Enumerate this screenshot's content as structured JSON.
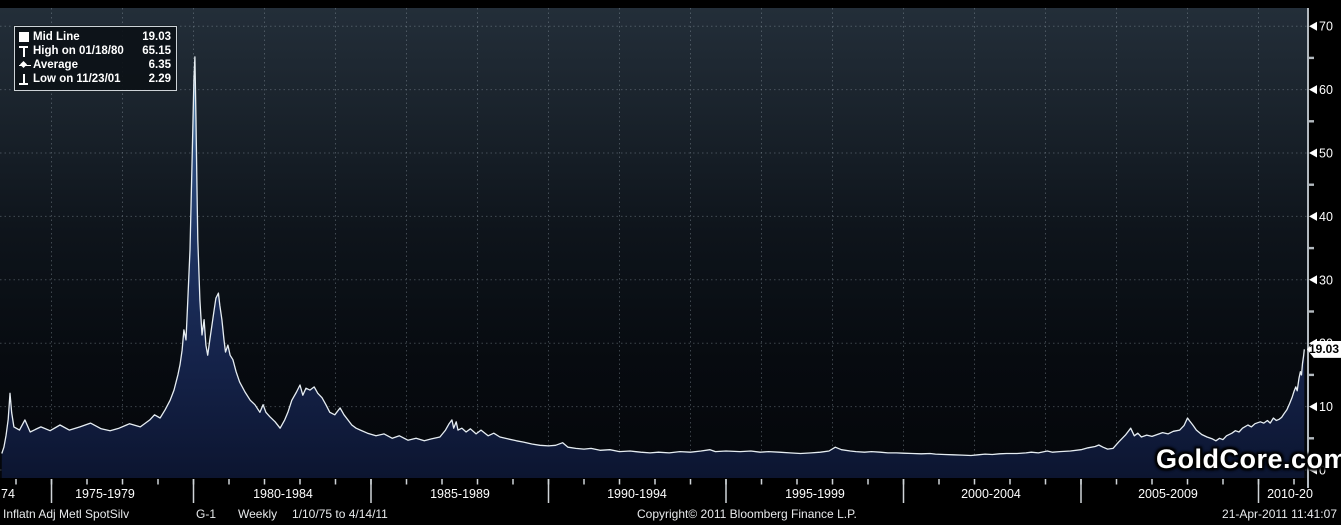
{
  "legend": {
    "rows": [
      {
        "icon": "mid-line-icon",
        "label": "Mid Line",
        "value": "19.03"
      },
      {
        "icon": "high-marker-icon",
        "label": "High on 01/18/80",
        "value": "65.15"
      },
      {
        "icon": "average-marker-icon",
        "label": "Average",
        "value": "6.35"
      },
      {
        "icon": "low-marker-icon",
        "label": "Low on 11/23/01",
        "value": "2.29"
      }
    ]
  },
  "y_axis": {
    "ticks": [
      70,
      60,
      50,
      40,
      30,
      20,
      10,
      0
    ],
    "minor_tick_interval": 5,
    "current_value_label": "19.03"
  },
  "x_axis": {
    "labels": [
      "74",
      "1975-1979",
      "1980-1984",
      "1985-1989",
      "1990-1994",
      "1995-1999",
      "2000-2004",
      "2005-2009",
      "2010-20"
    ]
  },
  "watermark": "GoldCore.com",
  "status_bar": {
    "security": "Inflatn Adj Metl SpotSilv",
    "page": "G-1",
    "frequency": "Weekly",
    "range": "1/10/75 to 4/14/11",
    "copyright": "Copyright© 2011 Bloomberg Finance L.P.",
    "timestamp": "21-Apr-2011 11:41:07"
  },
  "colors": {
    "background_top": "#232e39",
    "background_bottom": "#04060a",
    "area_top": "#7fa8c9",
    "area_bottom": "#0c1530",
    "line": "#e6edf2",
    "grid": "#95a2ac",
    "axis": "#b3bac0",
    "tag_background": "#ffffff"
  },
  "chart_data": {
    "type": "area",
    "series_name": "Inflatn Adj Metl SpotSilv",
    "frequency": "Weekly",
    "date_range": "1/10/75 to 4/14/11",
    "ylim": [
      0,
      70
    ],
    "y_tick_step": 10,
    "grid": "dotted",
    "legend_position": "top-left",
    "stats": {
      "mid_line": 19.03,
      "high": {
        "date": "01/18/80",
        "value": 65.15
      },
      "average": 6.35,
      "low": {
        "date": "11/23/01",
        "value": 2.29
      }
    },
    "x_grid_years": [
      1976,
      1978,
      1980,
      1982,
      1984,
      1986,
      1988,
      1990,
      1992,
      1994,
      1996,
      1998,
      2000,
      2002,
      2004,
      2006,
      2008,
      2010
    ],
    "x_section_tick_years": [
      1976,
      1980,
      1985,
      1990,
      1995,
      2000,
      2005,
      2010
    ],
    "x_minor_tick_years_range": [
      1975,
      2011
    ],
    "points": [
      [
        1974.6,
        2.6
      ],
      [
        1974.66,
        3.6
      ],
      [
        1974.72,
        5.5
      ],
      [
        1974.78,
        8.0
      ],
      [
        1974.83,
        12.1
      ],
      [
        1974.88,
        9.0
      ],
      [
        1974.94,
        6.8
      ],
      [
        1975.1,
        6.3
      ],
      [
        1975.25,
        7.9
      ],
      [
        1975.4,
        6.0
      ],
      [
        1975.55,
        6.4
      ],
      [
        1975.7,
        6.8
      ],
      [
        1975.96,
        6.2
      ],
      [
        1976.24,
        7.1
      ],
      [
        1976.5,
        6.3
      ],
      [
        1976.8,
        6.8
      ],
      [
        1977.1,
        7.4
      ],
      [
        1977.4,
        6.5
      ],
      [
        1977.65,
        6.2
      ],
      [
        1977.9,
        6.6
      ],
      [
        1978.2,
        7.3
      ],
      [
        1978.5,
        6.8
      ],
      [
        1978.77,
        7.9
      ],
      [
        1978.9,
        8.7
      ],
      [
        1979.06,
        8.2
      ],
      [
        1979.2,
        9.5
      ],
      [
        1979.34,
        11.0
      ],
      [
        1979.45,
        12.6
      ],
      [
        1979.56,
        15.0
      ],
      [
        1979.62,
        16.6
      ],
      [
        1979.68,
        18.9
      ],
      [
        1979.73,
        22.1
      ],
      [
        1979.79,
        20.5
      ],
      [
        1979.84,
        26.8
      ],
      [
        1979.9,
        34.7
      ],
      [
        1979.96,
        48.9
      ],
      [
        1980.01,
        61.5
      ],
      [
        1980.04,
        65.15
      ],
      [
        1980.07,
        55.2
      ],
      [
        1980.1,
        44.2
      ],
      [
        1980.12,
        36.3
      ],
      [
        1980.18,
        26.8
      ],
      [
        1980.24,
        21.3
      ],
      [
        1980.3,
        23.7
      ],
      [
        1980.35,
        19.7
      ],
      [
        1980.4,
        18.1
      ],
      [
        1980.46,
        20.5
      ],
      [
        1980.52,
        22.9
      ],
      [
        1980.58,
        25.2
      ],
      [
        1980.63,
        27.1
      ],
      [
        1980.7,
        27.9
      ],
      [
        1980.74,
        26.0
      ],
      [
        1980.8,
        23.7
      ],
      [
        1980.86,
        20.5
      ],
      [
        1980.9,
        18.6
      ],
      [
        1980.97,
        19.7
      ],
      [
        1981.03,
        18.1
      ],
      [
        1981.11,
        17.4
      ],
      [
        1981.2,
        15.5
      ],
      [
        1981.3,
        13.9
      ],
      [
        1981.45,
        12.3
      ],
      [
        1981.6,
        11.0
      ],
      [
        1981.73,
        10.3
      ],
      [
        1981.87,
        9.1
      ],
      [
        1981.96,
        10.3
      ],
      [
        1982.04,
        9.1
      ],
      [
        1982.15,
        8.4
      ],
      [
        1982.3,
        7.6
      ],
      [
        1982.44,
        6.6
      ],
      [
        1982.57,
        7.9
      ],
      [
        1982.66,
        9.1
      ],
      [
        1982.77,
        11.0
      ],
      [
        1982.9,
        12.3
      ],
      [
        1983.0,
        13.4
      ],
      [
        1983.08,
        11.8
      ],
      [
        1983.17,
        12.9
      ],
      [
        1983.28,
        12.6
      ],
      [
        1983.4,
        13.1
      ],
      [
        1983.5,
        12.1
      ],
      [
        1983.62,
        11.4
      ],
      [
        1983.73,
        10.3
      ],
      [
        1983.84,
        9.1
      ],
      [
        1983.98,
        8.7
      ],
      [
        1984.13,
        9.8
      ],
      [
        1984.24,
        8.7
      ],
      [
        1984.35,
        7.9
      ],
      [
        1984.46,
        7.1
      ],
      [
        1984.58,
        6.6
      ],
      [
        1984.7,
        6.3
      ],
      [
        1984.9,
        5.8
      ],
      [
        1985.14,
        5.4
      ],
      [
        1985.37,
        5.7
      ],
      [
        1985.6,
        5.0
      ],
      [
        1985.8,
        5.4
      ],
      [
        1986.04,
        4.7
      ],
      [
        1986.27,
        5.0
      ],
      [
        1986.5,
        4.6
      ],
      [
        1986.7,
        4.9
      ],
      [
        1986.94,
        5.2
      ],
      [
        1987.1,
        6.3
      ],
      [
        1987.2,
        7.3
      ],
      [
        1987.28,
        7.9
      ],
      [
        1987.33,
        6.6
      ],
      [
        1987.4,
        7.6
      ],
      [
        1987.45,
        6.3
      ],
      [
        1987.56,
        6.6
      ],
      [
        1987.68,
        6.0
      ],
      [
        1987.8,
        6.5
      ],
      [
        1987.96,
        5.7
      ],
      [
        1988.1,
        6.3
      ],
      [
        1988.3,
        5.4
      ],
      [
        1988.46,
        5.8
      ],
      [
        1988.63,
        5.2
      ],
      [
        1988.86,
        4.9
      ],
      [
        1989.1,
        4.6
      ],
      [
        1989.3,
        4.4
      ],
      [
        1989.53,
        4.1
      ],
      [
        1989.76,
        3.9
      ],
      [
        1990.0,
        3.8
      ],
      [
        1990.2,
        3.9
      ],
      [
        1990.4,
        4.3
      ],
      [
        1990.55,
        3.6
      ],
      [
        1990.77,
        3.4
      ],
      [
        1991.0,
        3.3
      ],
      [
        1991.2,
        3.4
      ],
      [
        1991.45,
        3.1
      ],
      [
        1991.73,
        3.2
      ],
      [
        1992.0,
        2.9
      ],
      [
        1992.3,
        3.0
      ],
      [
        1992.6,
        2.8
      ],
      [
        1992.86,
        2.7
      ],
      [
        1993.1,
        2.8
      ],
      [
        1993.4,
        2.7
      ],
      [
        1993.7,
        2.9
      ],
      [
        1994.0,
        2.8
      ],
      [
        1994.3,
        3.0
      ],
      [
        1994.55,
        3.2
      ],
      [
        1994.7,
        2.9
      ],
      [
        1995.0,
        3.0
      ],
      [
        1995.4,
        2.9
      ],
      [
        1995.7,
        3.0
      ],
      [
        1995.96,
        2.8
      ],
      [
        1996.2,
        2.9
      ],
      [
        1996.5,
        2.8
      ],
      [
        1996.8,
        2.7
      ],
      [
        1997.1,
        2.6
      ],
      [
        1997.4,
        2.7
      ],
      [
        1997.66,
        2.8
      ],
      [
        1997.9,
        3.0
      ],
      [
        1998.08,
        3.6
      ],
      [
        1998.25,
        3.2
      ],
      [
        1998.5,
        3.0
      ],
      [
        1998.66,
        2.9
      ],
      [
        1998.9,
        2.8
      ],
      [
        1999.1,
        2.9
      ],
      [
        1999.35,
        2.8
      ],
      [
        1999.56,
        2.7
      ],
      [
        1999.8,
        2.7
      ],
      [
        2000.0,
        2.65
      ],
      [
        2000.25,
        2.6
      ],
      [
        2000.5,
        2.55
      ],
      [
        2000.75,
        2.6
      ],
      [
        2000.9,
        2.5
      ],
      [
        2001.15,
        2.45
      ],
      [
        2001.4,
        2.4
      ],
      [
        2001.65,
        2.35
      ],
      [
        2001.9,
        2.29
      ],
      [
        2002.1,
        2.4
      ],
      [
        2002.3,
        2.5
      ],
      [
        2002.5,
        2.45
      ],
      [
        2002.7,
        2.55
      ],
      [
        2002.9,
        2.6
      ],
      [
        2003.2,
        2.6
      ],
      [
        2003.45,
        2.7
      ],
      [
        2003.6,
        2.8
      ],
      [
        2003.8,
        2.7
      ],
      [
        2004.05,
        3.0
      ],
      [
        2004.2,
        2.8
      ],
      [
        2004.4,
        2.9
      ],
      [
        2004.7,
        3.0
      ],
      [
        2005.0,
        3.2
      ],
      [
        2005.2,
        3.5
      ],
      [
        2005.4,
        3.7
      ],
      [
        2005.5,
        3.95
      ],
      [
        2005.62,
        3.6
      ],
      [
        2005.75,
        3.3
      ],
      [
        2005.9,
        3.4
      ],
      [
        2006.06,
        4.4
      ],
      [
        2006.25,
        5.5
      ],
      [
        2006.4,
        6.6
      ],
      [
        2006.5,
        5.4
      ],
      [
        2006.6,
        5.8
      ],
      [
        2006.7,
        5.2
      ],
      [
        2006.85,
        5.5
      ],
      [
        2007.0,
        5.3
      ],
      [
        2007.15,
        5.6
      ],
      [
        2007.3,
        5.9
      ],
      [
        2007.45,
        5.7
      ],
      [
        2007.6,
        6.1
      ],
      [
        2007.78,
        6.3
      ],
      [
        2007.9,
        7.0
      ],
      [
        2008.0,
        8.2
      ],
      [
        2008.05,
        7.8
      ],
      [
        2008.15,
        7.1
      ],
      [
        2008.25,
        6.3
      ],
      [
        2008.4,
        5.6
      ],
      [
        2008.55,
        5.2
      ],
      [
        2008.7,
        4.9
      ],
      [
        2008.8,
        4.6
      ],
      [
        2008.9,
        5.0
      ],
      [
        2009.0,
        4.8
      ],
      [
        2009.1,
        5.4
      ],
      [
        2009.25,
        5.8
      ],
      [
        2009.35,
        6.2
      ],
      [
        2009.45,
        6.0
      ],
      [
        2009.55,
        6.6
      ],
      [
        2009.7,
        7.1
      ],
      [
        2009.8,
        6.8
      ],
      [
        2009.9,
        7.3
      ],
      [
        2010.05,
        7.6
      ],
      [
        2010.15,
        7.4
      ],
      [
        2010.25,
        7.8
      ],
      [
        2010.33,
        7.4
      ],
      [
        2010.42,
        8.2
      ],
      [
        2010.5,
        7.8
      ],
      [
        2010.58,
        8.0
      ],
      [
        2010.65,
        8.3
      ],
      [
        2010.72,
        8.9
      ],
      [
        2010.8,
        9.5
      ],
      [
        2010.88,
        10.5
      ],
      [
        2010.95,
        11.5
      ],
      [
        2011.0,
        12.4
      ],
      [
        2011.05,
        13.1
      ],
      [
        2011.09,
        12.5
      ],
      [
        2011.14,
        14.5
      ],
      [
        2011.18,
        15.5
      ],
      [
        2011.21,
        15.0
      ],
      [
        2011.24,
        16.8
      ],
      [
        2011.27,
        18.0
      ],
      [
        2011.29,
        19.03
      ]
    ]
  }
}
